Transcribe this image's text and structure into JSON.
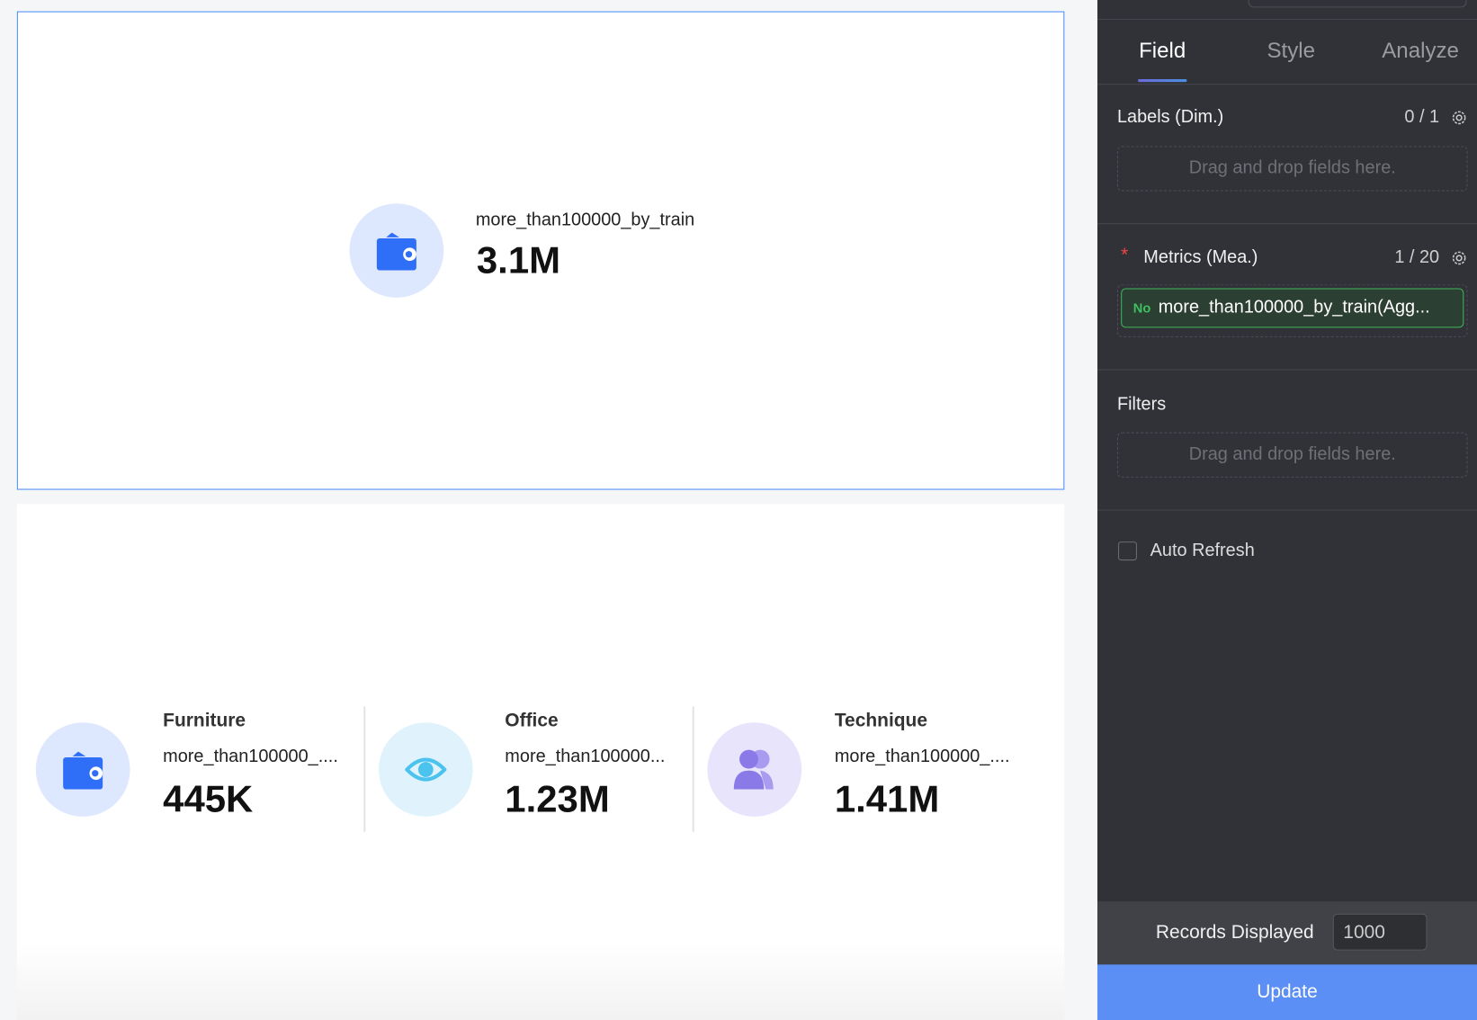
{
  "main_kpi": {
    "label": "more_than100000_by_train",
    "value": "3.1M",
    "icon": "wallet-icon",
    "icon_color": "#2f6ef6",
    "bg": "#dde7fd"
  },
  "kpis": [
    {
      "category": "Furniture",
      "label": "more_than100000_....",
      "value": "445K",
      "icon": "wallet-icon",
      "icon_color": "#2f6ef6",
      "bg": "#dde7fd"
    },
    {
      "category": "Office",
      "label": "more_than100000...",
      "value": "1.23M",
      "icon": "eye-icon",
      "icon_color": "#4cc3ef",
      "bg": "#e0f3fc"
    },
    {
      "category": "Technique",
      "label": "more_than100000_....",
      "value": "1.41M",
      "icon": "users-icon",
      "icon_color": "#8a7ae8",
      "bg": "#e7e4fb"
    }
  ],
  "panel": {
    "tabs": [
      {
        "label": "Field",
        "active": true
      },
      {
        "label": "Style"
      },
      {
        "label": "Analyze"
      }
    ],
    "labels": {
      "title": "Labels (Dim.)",
      "count": "0 / 1",
      "placeholder": "Drag and drop fields here."
    },
    "metrics": {
      "required": "*",
      "title": "Metrics (Mea.)",
      "count": "1 / 20",
      "field": "more_than100000_by_train(Agg...",
      "field_icon": "No"
    },
    "filters": {
      "title": "Filters",
      "placeholder": "Drag and drop fields here."
    },
    "auto_refresh": {
      "label": "Auto Refresh",
      "checked": false
    },
    "records": {
      "label": "Records Displayed",
      "value": "1000"
    },
    "update": "Update",
    "accent": "#5b8ff5"
  }
}
